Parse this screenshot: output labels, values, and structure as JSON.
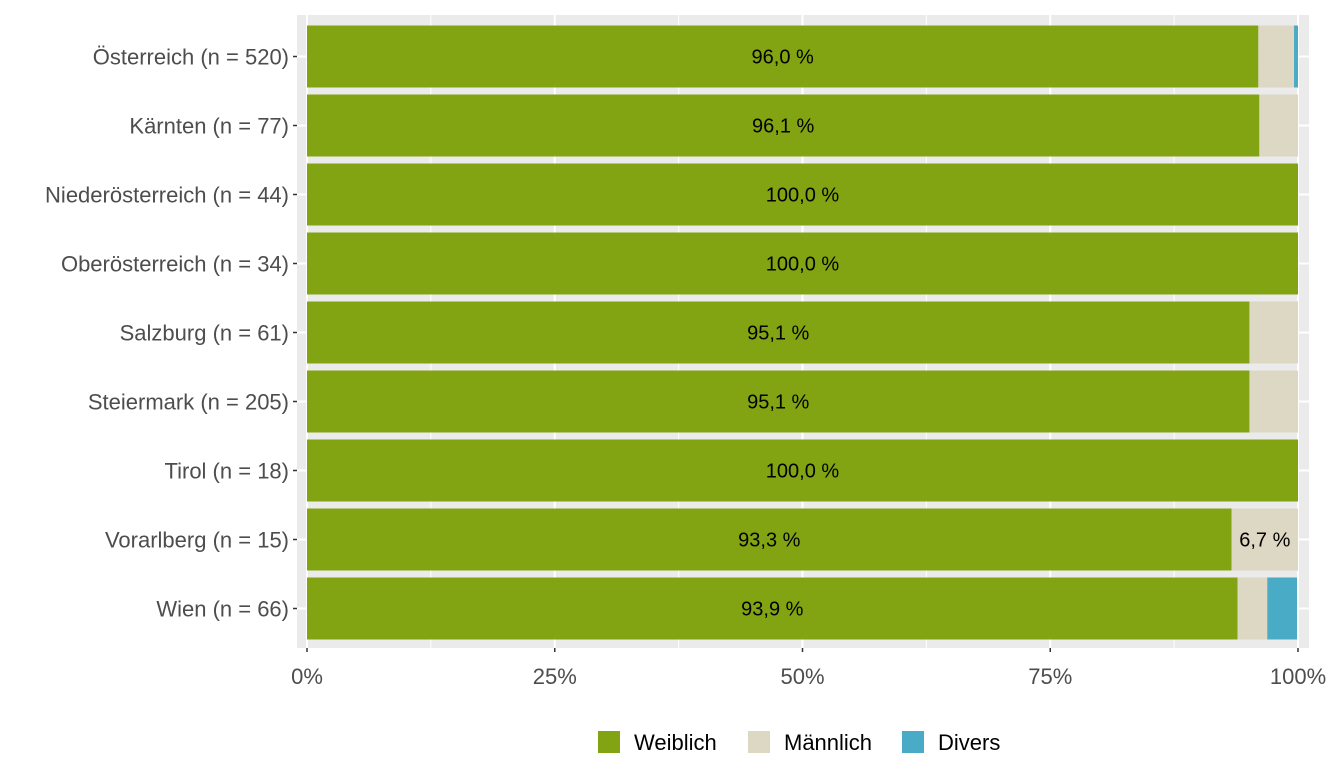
{
  "chart_data": {
    "type": "bar",
    "orientation": "horizontal",
    "stacked": true,
    "percent": true,
    "categories": [
      "Österreich (n = 520)",
      "Kärnten (n = 77)",
      "Niederösterreich (n = 44)",
      "Oberösterreich (n = 34)",
      "Salzburg (n = 61)",
      "Steiermark (n = 205)",
      "Tirol (n = 18)",
      "Vorarlberg (n = 15)",
      "Wien (n = 66)"
    ],
    "series": [
      {
        "name": "Weiblich",
        "color": "#82a312",
        "values": [
          96.0,
          96.1,
          100.0,
          100.0,
          95.1,
          95.1,
          100.0,
          93.3,
          93.9
        ],
        "labels": [
          "96,0 %",
          "96,1 %",
          "100,0 %",
          "100,0 %",
          "95,1 %",
          "95,1 %",
          "100,0 %",
          "93,3 %",
          "93,9 %"
        ]
      },
      {
        "name": "Männlich",
        "color": "#ddd8c4",
        "values": [
          3.6,
          3.9,
          0,
          0,
          4.9,
          4.9,
          0,
          6.7,
          3.0
        ],
        "labels": [
          "",
          "",
          "",
          "",
          "",
          "",
          "",
          "6,7 %",
          ""
        ]
      },
      {
        "name": "Divers",
        "color": "#4aabc6",
        "values": [
          0.4,
          0,
          0,
          0,
          0,
          0,
          0,
          0,
          3.0
        ],
        "labels": [
          "",
          "",
          "",
          "",
          "",
          "",
          "",
          "",
          ""
        ]
      }
    ],
    "xticks": [
      "0%",
      "25%",
      "50%",
      "75%",
      "100%"
    ],
    "xlim": [
      0,
      100
    ],
    "grid": true,
    "legend": "bottom",
    "title": "",
    "xlabel": "",
    "ylabel": ""
  }
}
